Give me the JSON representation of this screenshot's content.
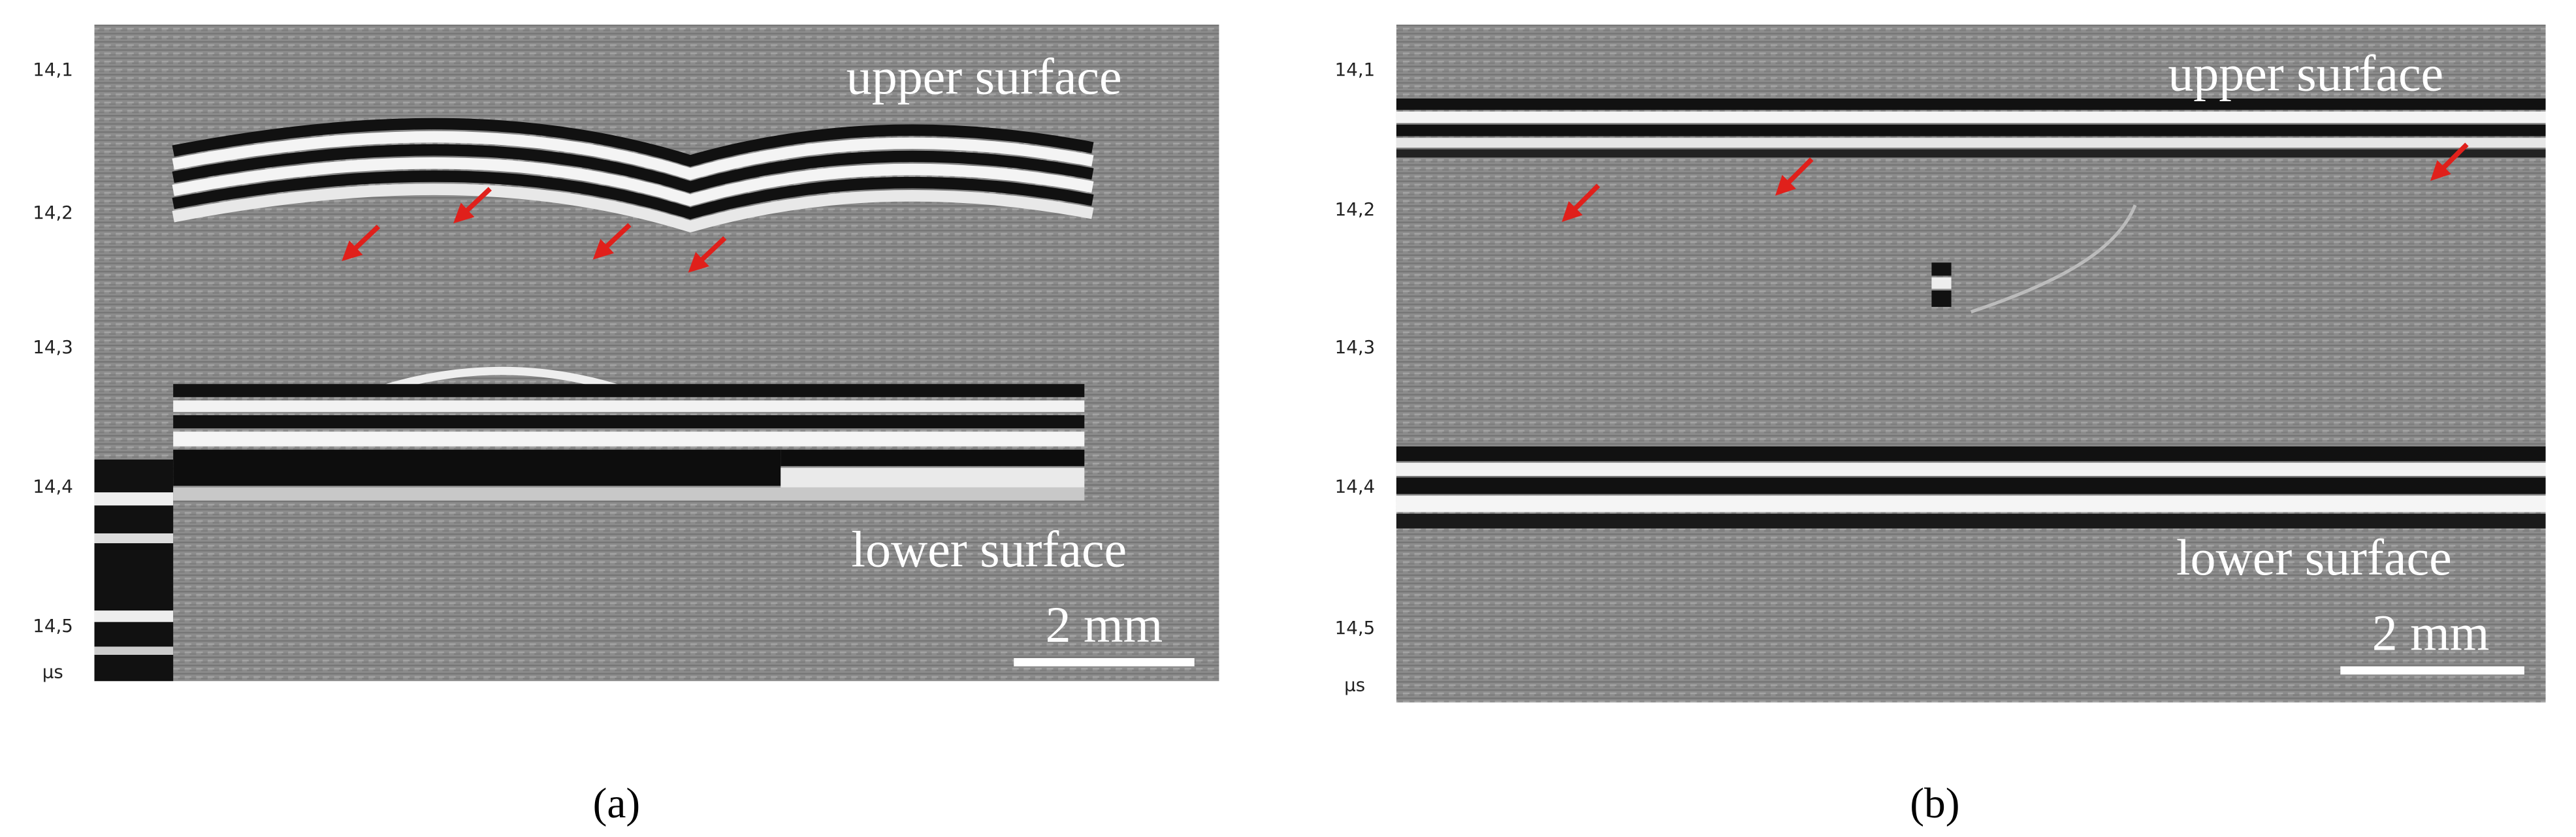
{
  "panels": [
    {
      "label": "(a)",
      "yticks": [
        "14,1",
        "14,2",
        "14,3",
        "14,4",
        "14,5"
      ],
      "unit": "μs",
      "annotations": [
        "upper surface",
        "lower surface"
      ],
      "scale_bar": "2 mm"
    },
    {
      "label": "(b)",
      "yticks": [
        "14,1",
        "14,2",
        "14,3",
        "14,4",
        "14,5"
      ],
      "unit": "μs",
      "annotations": [
        "upper surface",
        "lower surface"
      ],
      "scale_bar": "2 mm"
    }
  ]
}
